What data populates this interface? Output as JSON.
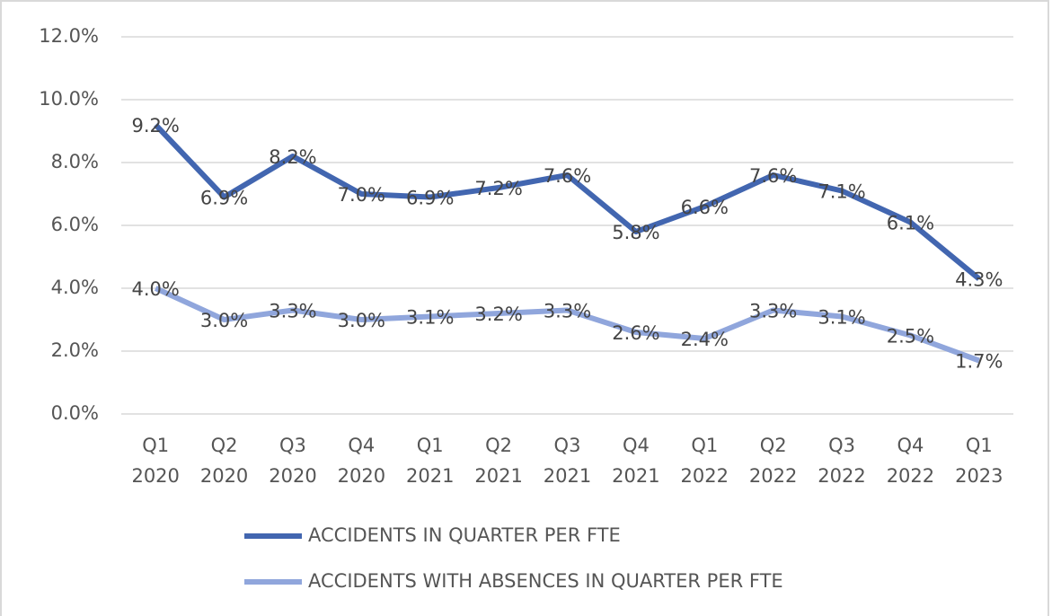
{
  "chart_data": {
    "type": "line",
    "categories": [
      "Q1 2020",
      "Q2 2020",
      "Q3 2020",
      "Q4 2020",
      "Q1 2021",
      "Q2 2021",
      "Q3 2021",
      "Q4 2021",
      "Q1 2022",
      "Q2 2022",
      "Q3 2022",
      "Q4 2022",
      "Q1 2023"
    ],
    "series": [
      {
        "name": "ACCIDENTS IN QUARTER PER FTE",
        "color": "#4266b0",
        "values": [
          9.2,
          6.9,
          8.2,
          7.0,
          6.9,
          7.2,
          7.6,
          5.8,
          6.6,
          7.6,
          7.1,
          6.1,
          4.3
        ],
        "value_labels": [
          "9.2%",
          "6.9%",
          "8.2%",
          "7.0%",
          "6.9%",
          "7.2%",
          "7.6%",
          "5.8%",
          "6.6%",
          "7.6%",
          "7.1%",
          "6.1%",
          "4.3%"
        ]
      },
      {
        "name": "ACCIDENTS WITH ABSENCES IN QUARTER PER FTE",
        "color": "#90a6dc",
        "values": [
          4.0,
          3.0,
          3.3,
          3.0,
          3.1,
          3.2,
          3.3,
          2.6,
          2.4,
          3.3,
          3.1,
          2.5,
          1.7
        ],
        "value_labels": [
          "4.0%",
          "3.0%",
          "3.3%",
          "3.0%",
          "3.1%",
          "3.2%",
          "3.3%",
          "2.6%",
          "2.4%",
          "3.3%",
          "3.1%",
          "2.5%",
          "1.7%"
        ]
      }
    ],
    "ylim": [
      0,
      12
    ],
    "yticks": [
      {
        "value": 0,
        "label": "0.0%"
      },
      {
        "value": 2,
        "label": "2.0%"
      },
      {
        "value": 4,
        "label": "4.0%"
      },
      {
        "value": 6,
        "label": "6.0%"
      },
      {
        "value": 8,
        "label": "8.0%"
      },
      {
        "value": 10,
        "label": "10.0%"
      },
      {
        "value": 12,
        "label": "12.0%"
      }
    ],
    "grid": true,
    "legend": "bottom"
  }
}
